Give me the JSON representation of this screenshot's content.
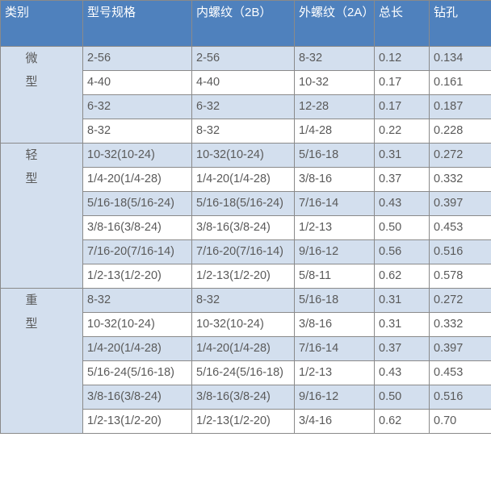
{
  "header": [
    "类别",
    "型号规格",
    "内螺纹（2B）",
    "外螺纹（2A）",
    "总长",
    "钻孔"
  ],
  "colors": {
    "header_bg": "#4f81bd",
    "shade_bg": "#d3dfee",
    "border": "#8a8a8a"
  },
  "groups": [
    {
      "category": "微型",
      "rows": [
        [
          "2-56",
          "2-56",
          "8-32",
          "0.12",
          "0.134"
        ],
        [
          "4-40",
          "4-40",
          "10-32",
          "0.17",
          "0.161"
        ],
        [
          "6-32",
          "6-32",
          "12-28",
          "0.17",
          "0.187"
        ],
        [
          "8-32",
          "8-32",
          "1/4-28",
          "0.22",
          "0.228"
        ]
      ]
    },
    {
      "category": "轻型",
      "rows": [
        [
          "10-32(10-24)",
          "10-32(10-24)",
          "5/16-18",
          "0.31",
          "0.272"
        ],
        [
          "1/4-20(1/4-28)",
          "1/4-20(1/4-28)",
          "3/8-16",
          "0.37",
          "0.332"
        ],
        [
          "5/16-18(5/16-24)",
          "5/16-18(5/16-24)",
          "7/16-14",
          "0.43",
          "0.397"
        ],
        [
          "3/8-16(3/8-24)",
          "3/8-16(3/8-24)",
          "1/2-13",
          "0.50",
          "0.453"
        ],
        [
          "7/16-20(7/16-14)",
          "7/16-20(7/16-14)",
          "9/16-12",
          "0.56",
          "0.516"
        ],
        [
          "1/2-13(1/2-20)",
          "1/2-13(1/2-20)",
          "5/8-11",
          "0.62",
          "0.578"
        ]
      ]
    },
    {
      "category": "重型",
      "rows": [
        [
          "8-32",
          "8-32",
          "5/16-18",
          "0.31",
          "0.272"
        ],
        [
          "10-32(10-24)",
          "10-32(10-24)",
          "3/8-16",
          "0.31",
          "0.332"
        ],
        [
          "1/4-20(1/4-28)",
          "1/4-20(1/4-28)",
          "7/16-14",
          "0.37",
          "0.397"
        ],
        [
          "5/16-24(5/16-18)",
          "5/16-24(5/16-18)",
          "1/2-13",
          "0.43",
          "0.453"
        ],
        [
          "3/8-16(3/8-24)",
          "3/8-16(3/8-24)",
          "9/16-12",
          "0.50",
          "0.516"
        ],
        [
          "1/2-13(1/2-20)",
          "1/2-13(1/2-20)",
          "3/4-16",
          "0.62",
          "0.70"
        ]
      ]
    }
  ]
}
